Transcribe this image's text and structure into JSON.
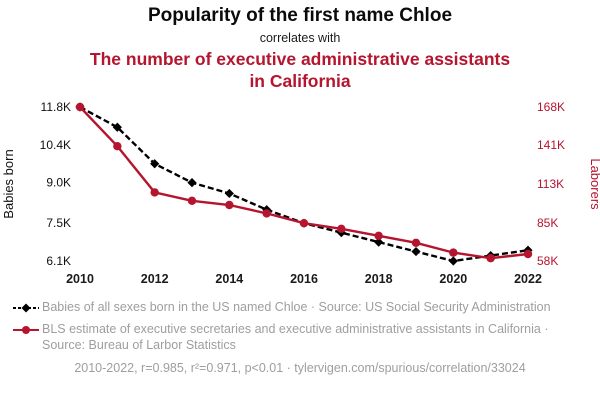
{
  "header": {
    "title": "Popularity of the first name Chloe",
    "subtitle": "correlates with",
    "correlate_title": "The number of executive administrative assistants in California"
  },
  "colors": {
    "red": "#b5152e",
    "black": "#000000",
    "legend_gray": "#9e9e9e"
  },
  "chart_data": {
    "type": "line",
    "x": [
      2010,
      2011,
      2012,
      2013,
      2014,
      2015,
      2016,
      2017,
      2018,
      2019,
      2020,
      2021,
      2022
    ],
    "x_ticks": [
      2010,
      2012,
      2014,
      2016,
      2018,
      2020,
      2022
    ],
    "left_axis": {
      "label": "Babies born",
      "min": 6100,
      "max": 11800,
      "ticks": [
        {
          "label": "6.1K",
          "value": 6100
        },
        {
          "label": "7.5K",
          "value": 7500
        },
        {
          "label": "9.0K",
          "value": 9000
        },
        {
          "label": "10.4K",
          "value": 10400
        },
        {
          "label": "11.8K",
          "value": 11800
        }
      ]
    },
    "right_axis": {
      "label": "Laborers",
      "min": 58000,
      "max": 168000,
      "ticks": [
        {
          "label": "58K",
          "value": 58000
        },
        {
          "label": "85K",
          "value": 85000
        },
        {
          "label": "113K",
          "value": 113000
        },
        {
          "label": "141K",
          "value": 141000
        },
        {
          "label": "168K",
          "value": 168000
        }
      ]
    },
    "series": [
      {
        "id": "chloe",
        "name": "Babies of all sexes born in the US named Chloe",
        "axis": "left",
        "color": "#000000",
        "marker": "diamond",
        "dash": true,
        "values": [
          11800,
          11050,
          9700,
          9000,
          8600,
          8000,
          7500,
          7150,
          6800,
          6450,
          6100,
          6300,
          6500
        ]
      },
      {
        "id": "bls",
        "name": "BLS estimate of executive secretaries and executive administrative assistants in California",
        "axis": "right",
        "color": "#b5152e",
        "marker": "circle",
        "dash": false,
        "values": [
          168000,
          140000,
          107000,
          101000,
          98000,
          92000,
          85000,
          81000,
          76000,
          71000,
          64000,
          60000,
          63000
        ]
      }
    ],
    "grid": false,
    "legend_position": "bottom"
  },
  "legend": [
    {
      "text": "Babies of all sexes born in the US named Chloe · Source: US Social Security Administration"
    },
    {
      "text": "BLS estimate of executive secretaries and executive administrative assistants in California · Source: Bureau of Larbor Statistics"
    }
  ],
  "footer": {
    "text": "2010-2022, r=0.985, r²=0.971, p<0.01 · tylervigen.com/spurious/correlation/33024"
  }
}
